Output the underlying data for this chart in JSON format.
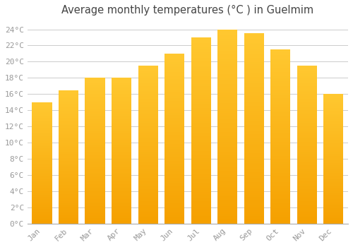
{
  "title": "Average monthly temperatures (°C ) in Guelmim",
  "months": [
    "Jan",
    "Feb",
    "Mar",
    "Apr",
    "May",
    "Jun",
    "Jul",
    "Aug",
    "Sep",
    "Oct",
    "Nov",
    "Dec"
  ],
  "values": [
    15.0,
    16.5,
    18.0,
    18.0,
    19.5,
    21.0,
    23.0,
    24.0,
    23.5,
    21.5,
    19.5,
    16.0
  ],
  "ylim": [
    0,
    25
  ],
  "yticks": [
    0,
    2,
    4,
    6,
    8,
    10,
    12,
    14,
    16,
    18,
    20,
    22,
    24
  ],
  "bar_color_light": "#FFC830",
  "bar_color_dark": "#F5A000",
  "background_color": "#FFFFFF",
  "grid_color": "#CCCCCC",
  "tick_label_color": "#999999",
  "title_color": "#444444",
  "title_fontsize": 10.5,
  "tick_fontsize": 8
}
